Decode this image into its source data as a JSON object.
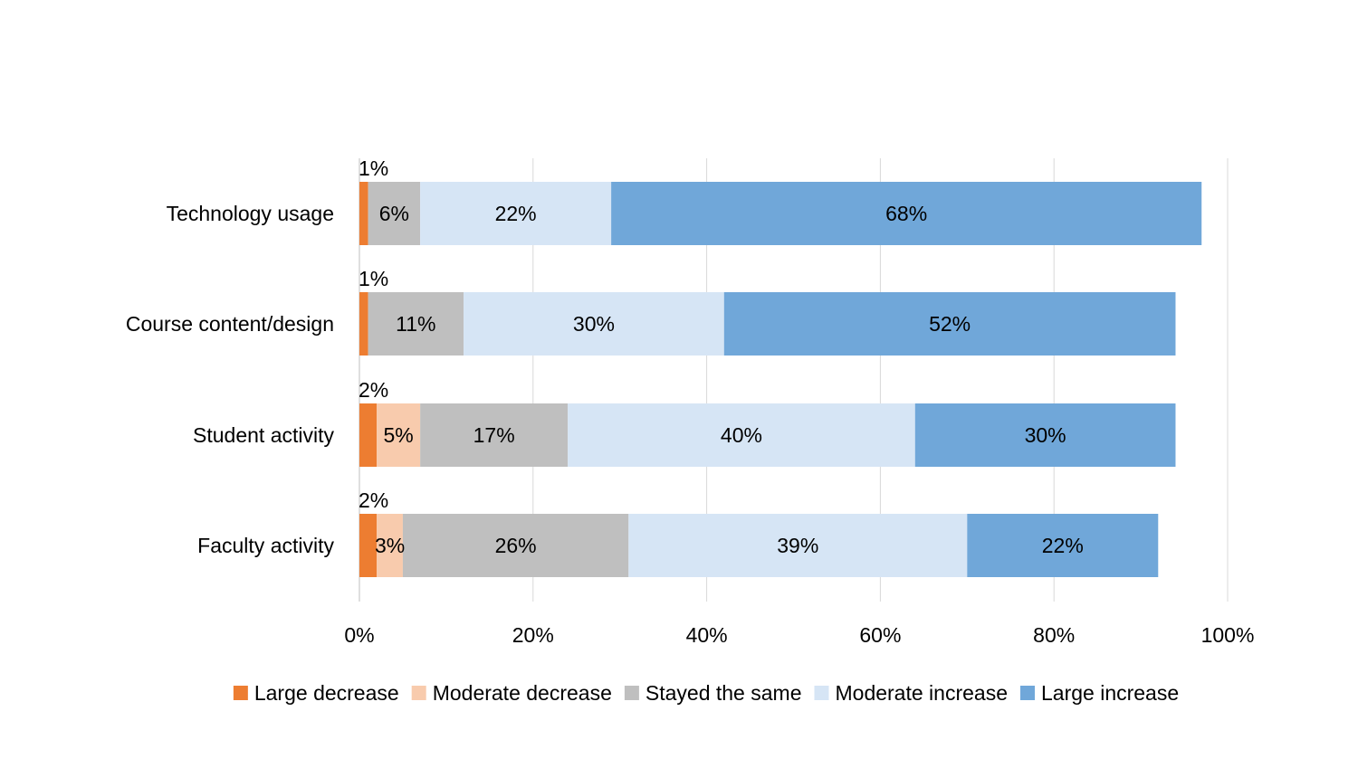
{
  "chart_data": {
    "type": "bar",
    "orientation": "horizontal",
    "stacked": true,
    "title": "",
    "xlabel": "",
    "ylabel": "",
    "xlim": [
      0,
      100
    ],
    "x_ticks": [
      "0%",
      "20%",
      "40%",
      "60%",
      "80%",
      "100%"
    ],
    "x_tick_values": [
      0,
      20,
      40,
      60,
      80,
      100
    ],
    "grid": "vertical",
    "legend_position": "bottom",
    "categories": [
      "Technology usage",
      "Course content/design",
      "Student activity",
      "Faculty activity"
    ],
    "series": [
      {
        "name": "Large decrease",
        "color": "#ED7D31",
        "values": [
          1,
          1,
          2,
          2
        ],
        "labels": [
          "1%",
          "1%",
          "2%",
          "2%"
        ]
      },
      {
        "name": "Moderate decrease",
        "color": "#F8CBAD",
        "values": [
          0,
          0,
          5,
          3
        ],
        "labels": [
          "",
          "",
          "5%",
          "3%"
        ]
      },
      {
        "name": "Stayed the same",
        "color": "#BFBFBF",
        "values": [
          6,
          11,
          17,
          26
        ],
        "labels": [
          "6%",
          "11%",
          "17%",
          "26%"
        ]
      },
      {
        "name": "Moderate increase",
        "color": "#D6E5F5",
        "values": [
          22,
          30,
          40,
          39
        ],
        "labels": [
          "22%",
          "30%",
          "40%",
          "39%"
        ]
      },
      {
        "name": "Large increase",
        "color": "#70A7D9",
        "values": [
          68,
          52,
          30,
          22
        ],
        "labels": [
          "68%",
          "52%",
          "30%",
          "22%"
        ]
      }
    ]
  }
}
